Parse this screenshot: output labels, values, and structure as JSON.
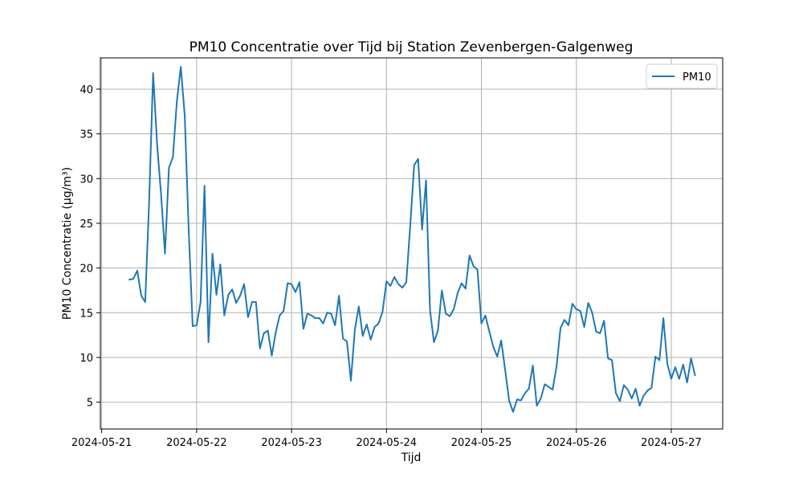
{
  "chart_data": {
    "type": "line",
    "title": "PM10 Concentratie over Tijd bij Station Zevenbergen-Galgenweg",
    "xlabel": "Tijd",
    "ylabel": "PM10 Concentratie (µg/m³)",
    "xlim": [
      "2024-05-20 23:40",
      "2024-05-27 13:00"
    ],
    "ylim": [
      2,
      43.5
    ],
    "grid": true,
    "legend_position": "top-right",
    "x_ticks": [
      "2024-05-21",
      "2024-05-22",
      "2024-05-23",
      "2024-05-24",
      "2024-05-25",
      "2024-05-26",
      "2024-05-27"
    ],
    "y_ticks": [
      5,
      10,
      15,
      20,
      25,
      30,
      35,
      40
    ],
    "colors": {
      "series": "#1f77b4",
      "grid": "#b0b0b0"
    },
    "series": [
      {
        "name": "PM10",
        "x": [
          "2024-05-21 07:00",
          "2024-05-21 08:00",
          "2024-05-21 09:00",
          "2024-05-21 10:00",
          "2024-05-21 11:00",
          "2024-05-21 12:00",
          "2024-05-21 13:00",
          "2024-05-21 14:00",
          "2024-05-21 15:00",
          "2024-05-21 16:00",
          "2024-05-21 17:00",
          "2024-05-21 18:00",
          "2024-05-21 19:00",
          "2024-05-21 20:00",
          "2024-05-21 21:00",
          "2024-05-21 22:00",
          "2024-05-21 23:00",
          "2024-05-22 00:00",
          "2024-05-22 01:00",
          "2024-05-22 02:00",
          "2024-05-22 03:00",
          "2024-05-22 04:00",
          "2024-05-22 05:00",
          "2024-05-22 06:00",
          "2024-05-22 07:00",
          "2024-05-22 08:00",
          "2024-05-22 09:00",
          "2024-05-22 10:00",
          "2024-05-22 11:00",
          "2024-05-22 12:00",
          "2024-05-22 13:00",
          "2024-05-22 14:00",
          "2024-05-22 15:00",
          "2024-05-22 16:00",
          "2024-05-22 17:00",
          "2024-05-22 18:00",
          "2024-05-22 19:00",
          "2024-05-22 20:00",
          "2024-05-22 21:00",
          "2024-05-22 22:00",
          "2024-05-22 23:00",
          "2024-05-23 00:00",
          "2024-05-23 01:00",
          "2024-05-23 02:00",
          "2024-05-23 03:00",
          "2024-05-23 04:00",
          "2024-05-23 05:00",
          "2024-05-23 06:00",
          "2024-05-23 07:00",
          "2024-05-23 08:00",
          "2024-05-23 09:00",
          "2024-05-23 10:00",
          "2024-05-23 11:00",
          "2024-05-23 12:00",
          "2024-05-23 13:00",
          "2024-05-23 14:00",
          "2024-05-23 15:00",
          "2024-05-23 16:00",
          "2024-05-23 17:00",
          "2024-05-23 18:00",
          "2024-05-23 19:00",
          "2024-05-23 20:00",
          "2024-05-23 21:00",
          "2024-05-23 22:00",
          "2024-05-23 23:00",
          "2024-05-24 00:00",
          "2024-05-24 01:00",
          "2024-05-24 02:00",
          "2024-05-24 03:00",
          "2024-05-24 04:00",
          "2024-05-24 05:00",
          "2024-05-24 06:00",
          "2024-05-24 07:00",
          "2024-05-24 08:00",
          "2024-05-24 09:00",
          "2024-05-24 10:00",
          "2024-05-24 11:00",
          "2024-05-24 12:00",
          "2024-05-24 13:00",
          "2024-05-24 14:00",
          "2024-05-24 15:00",
          "2024-05-24 16:00",
          "2024-05-24 17:00",
          "2024-05-24 18:00",
          "2024-05-24 19:00",
          "2024-05-24 20:00",
          "2024-05-24 21:00",
          "2024-05-24 22:00",
          "2024-05-24 23:00",
          "2024-05-25 00:00",
          "2024-05-25 01:00",
          "2024-05-25 02:00",
          "2024-05-25 03:00",
          "2024-05-25 04:00",
          "2024-05-25 05:00",
          "2024-05-25 06:00",
          "2024-05-25 07:00",
          "2024-05-25 08:00",
          "2024-05-25 09:00",
          "2024-05-25 10:00",
          "2024-05-25 11:00",
          "2024-05-25 12:00",
          "2024-05-25 13:00",
          "2024-05-25 14:00",
          "2024-05-25 15:00",
          "2024-05-25 16:00",
          "2024-05-25 17:00",
          "2024-05-25 18:00",
          "2024-05-25 19:00",
          "2024-05-25 20:00",
          "2024-05-25 21:00",
          "2024-05-25 22:00",
          "2024-05-25 23:00",
          "2024-05-26 00:00",
          "2024-05-26 01:00",
          "2024-05-26 02:00",
          "2024-05-26 03:00",
          "2024-05-26 04:00",
          "2024-05-26 05:00",
          "2024-05-26 06:00",
          "2024-05-26 07:00",
          "2024-05-26 08:00",
          "2024-05-26 09:00",
          "2024-05-26 10:00",
          "2024-05-26 11:00",
          "2024-05-26 12:00",
          "2024-05-26 13:00",
          "2024-05-26 14:00",
          "2024-05-26 15:00",
          "2024-05-26 16:00",
          "2024-05-26 17:00",
          "2024-05-26 18:00",
          "2024-05-26 19:00",
          "2024-05-26 20:00",
          "2024-05-26 21:00",
          "2024-05-26 22:00",
          "2024-05-26 23:00",
          "2024-05-27 00:00",
          "2024-05-27 01:00",
          "2024-05-27 02:00",
          "2024-05-27 03:00",
          "2024-05-27 04:00",
          "2024-05-27 05:00",
          "2024-05-27 06:00"
        ],
        "values": [
          18.7,
          18.8,
          19.7,
          16.9,
          16.2,
          27.5,
          41.8,
          33.9,
          28.3,
          21.6,
          31.2,
          32.4,
          38.6,
          42.5,
          37.0,
          24.2,
          13.5,
          13.6,
          16.2,
          29.2,
          11.7,
          21.6,
          17.0,
          20.4,
          14.7,
          17.0,
          17.6,
          16.1,
          16.9,
          18.2,
          14.5,
          16.2,
          16.2,
          11.0,
          12.7,
          13.0,
          10.2,
          12.8,
          14.7,
          15.2,
          18.3,
          18.2,
          17.3,
          18.4,
          13.2,
          14.9,
          14.7,
          14.4,
          14.4,
          13.8,
          15.0,
          14.9,
          13.6,
          16.9,
          12.1,
          11.8,
          7.4,
          13.1,
          15.7,
          12.4,
          13.7,
          12.0,
          13.4,
          13.8,
          15.1,
          18.5,
          18.0,
          19.0,
          18.2,
          17.8,
          18.4,
          24.7,
          31.5,
          32.2,
          24.3,
          29.8,
          15.3,
          11.7,
          13.0,
          17.5,
          14.9,
          14.6,
          15.4,
          17.2,
          18.3,
          17.7,
          21.4,
          20.2,
          19.8,
          13.8,
          14.7,
          12.9,
          11.2,
          10.1,
          11.9,
          8.6,
          5.2,
          3.9,
          5.3,
          5.2,
          6.0,
          6.5,
          9.1,
          4.6,
          5.4,
          7.0,
          6.7,
          6.4,
          9.0,
          13.3,
          14.2,
          13.6,
          16.0,
          15.4,
          15.2,
          13.4,
          16.1,
          15.0,
          12.9,
          12.7,
          14.1,
          9.9,
          9.7,
          6.0,
          5.1,
          6.9,
          6.4,
          5.4,
          6.5,
          4.6,
          5.7,
          6.3,
          6.6,
          10.1,
          9.7,
          14.4,
          9.3,
          7.6,
          8.9,
          7.6,
          9.2,
          7.2,
          9.9,
          8.0
        ]
      }
    ]
  }
}
